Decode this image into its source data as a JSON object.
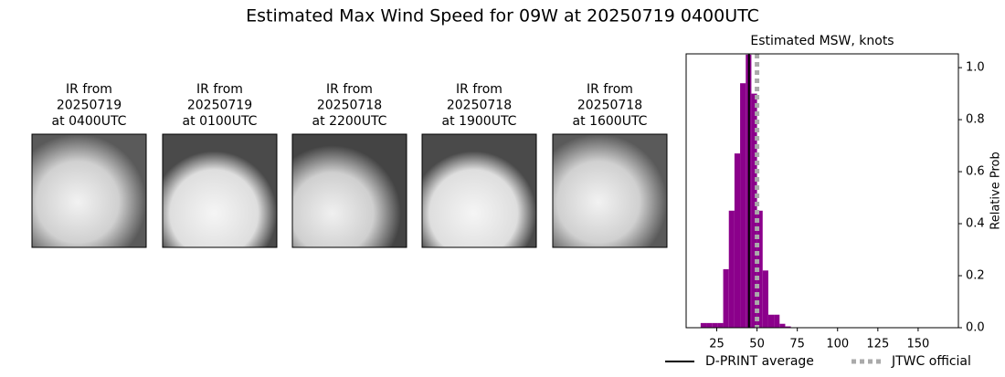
{
  "title": "Estimated Max Wind Speed for 09W at 20250719 0400UTC",
  "panels": [
    {
      "lines": [
        "IR from",
        "20250719",
        "at 0400UTC"
      ]
    },
    {
      "lines": [
        "IR from",
        "20250719",
        "at 0100UTC"
      ]
    },
    {
      "lines": [
        "IR from",
        "20250718",
        "at 2200UTC"
      ]
    },
    {
      "lines": [
        "IR from",
        "20250718",
        "at 1900UTC"
      ]
    },
    {
      "lines": [
        "IR from",
        "20250718",
        "at 1600UTC"
      ]
    }
  ],
  "chart_data": {
    "type": "histogram",
    "title": "Estimated MSW, knots",
    "ylabel": "Relative Prob",
    "bins": [
      15,
      18.5,
      22,
      25.5,
      29,
      32.5,
      36,
      39.5,
      43,
      46.5,
      50,
      53.5,
      57,
      60.5,
      64,
      67.5,
      71
    ],
    "counts": [
      0.018,
      0.018,
      0.018,
      0.018,
      0.225,
      0.45,
      0.67,
      0.94,
      1.05,
      0.9,
      0.45,
      0.22,
      0.05,
      0.05,
      0.015,
      0.005
    ],
    "color": "#8b008b",
    "xlim": [
      6,
      175
    ],
    "xticks": [
      25,
      50,
      75,
      100,
      125,
      150
    ],
    "ylim": [
      0,
      1.053
    ],
    "yticks": [
      {
        "value": 0,
        "label": "0.0"
      },
      0.2,
      0.4,
      0.6,
      0.8,
      {
        "value": 1,
        "label": "1.0"
      }
    ],
    "lines": [
      {
        "name": "D-PRINT average",
        "value": 45,
        "color": "#000000",
        "style": "solid"
      },
      {
        "name": "JTWC official",
        "value": 50,
        "color": "#aaaaaa",
        "style": "dotted"
      }
    ]
  }
}
